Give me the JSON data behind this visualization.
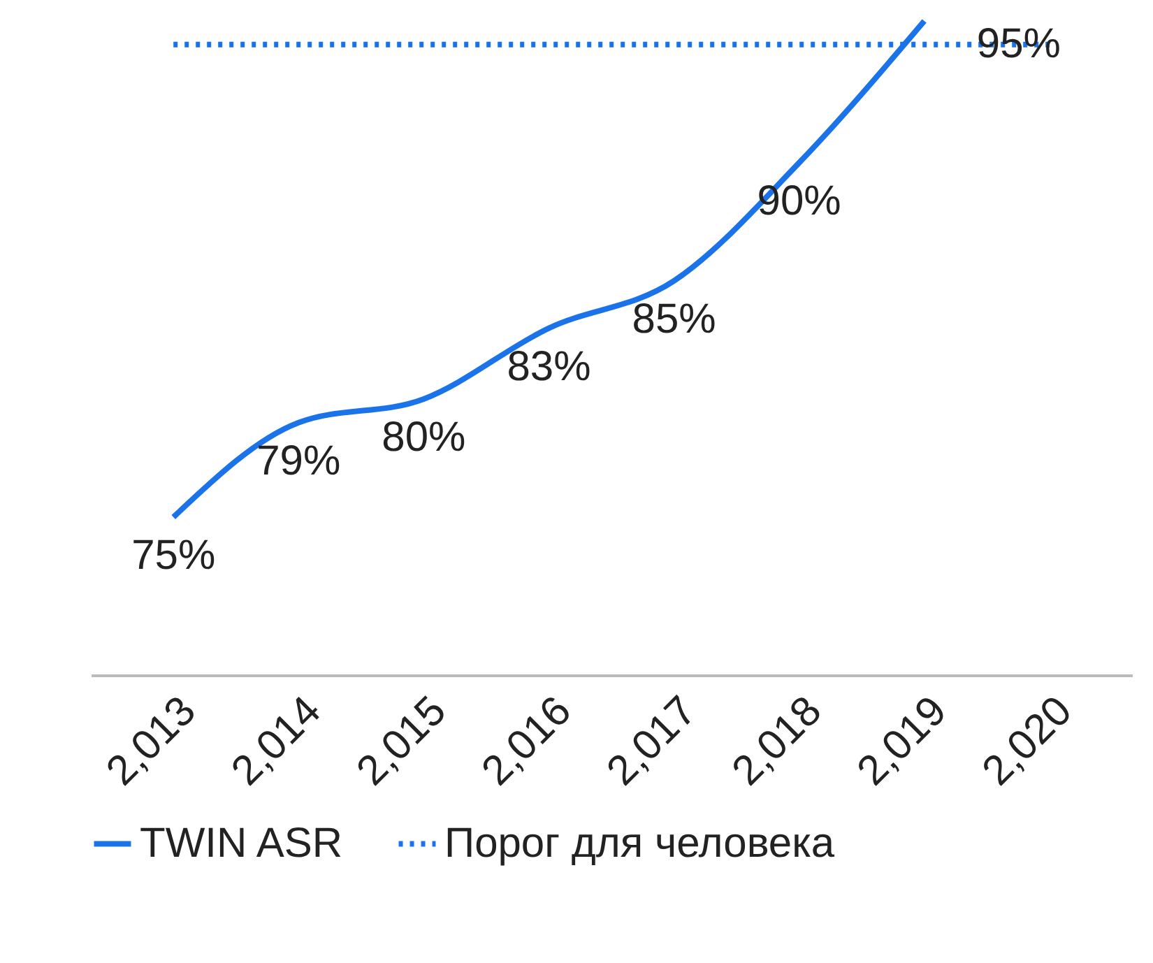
{
  "chart_data": {
    "type": "line",
    "categories": [
      "2,013",
      "2,014",
      "2,015",
      "2,016",
      "2,017",
      "2,018",
      "2,019",
      "2,020"
    ],
    "tick_labels": "x",
    "grid": false,
    "legend": "bottom",
    "series": [
      {
        "name": "TWIN ASR",
        "color": "#1a73e8",
        "line_style": "solid",
        "values": [
          75,
          79,
          80,
          83,
          85,
          90,
          96,
          null
        ],
        "value_labels": [
          "75%",
          "79%",
          "80%",
          "83%",
          "85%",
          "90%",
          null,
          null
        ]
      },
      {
        "name": "Порог для человека",
        "color": "#1a73e8",
        "line_style": "dotted",
        "values": [
          95,
          95,
          95,
          95,
          95,
          95,
          95,
          95
        ],
        "value_labels": [
          null,
          null,
          null,
          null,
          null,
          null,
          null,
          "95%"
        ]
      }
    ]
  }
}
